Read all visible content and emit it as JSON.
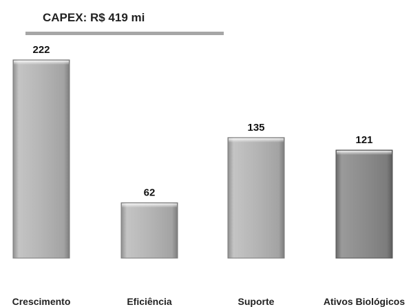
{
  "chart_data": {
    "type": "bar",
    "title": "CAPEX: R$ 419 mi",
    "categories": [
      "Crescimento",
      "Eficiência",
      "Suporte",
      "Ativos Biológicos"
    ],
    "values": [
      222,
      62,
      135,
      121
    ],
    "xlabel": "",
    "ylabel": "",
    "ylim": [
      0,
      222
    ],
    "grid": false,
    "bar_colors": [
      "#b3b3b3",
      "#b3b3b3",
      "#b3b3b3",
      "#8c8c8c"
    ],
    "title_rule_color": "#a6a6a6"
  }
}
